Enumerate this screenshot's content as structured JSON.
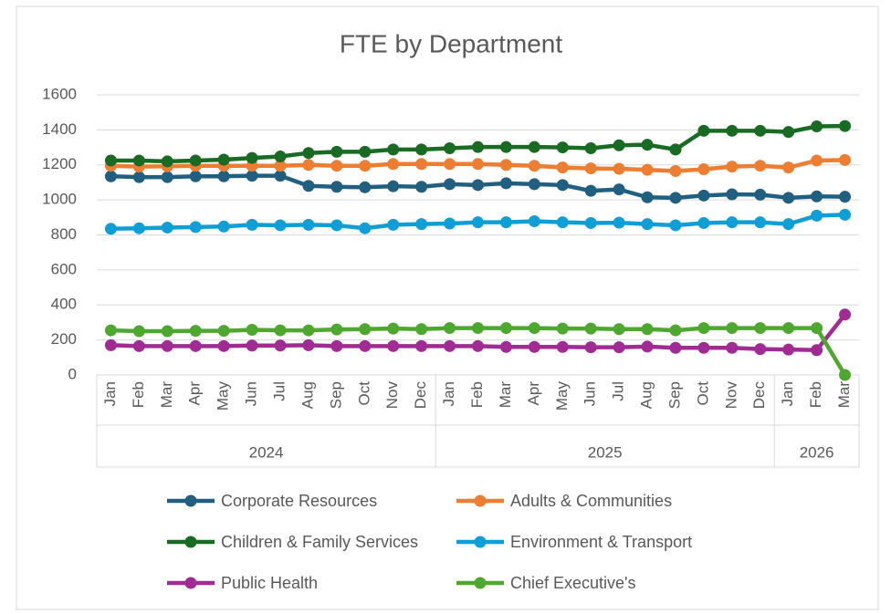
{
  "chart_data": {
    "type": "line",
    "title": "FTE by Department",
    "categories": [
      "Jan",
      "Feb",
      "Mar",
      "Apr",
      "May",
      "Jun",
      "Jul",
      "Aug",
      "Sep",
      "Oct",
      "Nov",
      "Dec",
      "Jan",
      "Feb",
      "Mar",
      "Apr",
      "May",
      "Jun",
      "Jul",
      "Aug",
      "Sep",
      "Oct",
      "Nov",
      "Dec",
      "Jan",
      "Feb",
      "Mar"
    ],
    "groups": [
      {
        "label": "2024",
        "count": 12
      },
      {
        "label": "2025",
        "count": 12
      },
      {
        "label": "2026",
        "count": 3
      }
    ],
    "ylim": [
      0,
      1600
    ],
    "yticks": [
      0,
      200,
      400,
      600,
      800,
      1000,
      1200,
      1400,
      1600
    ],
    "grid": true,
    "series": [
      {
        "name": "Corporate Resources",
        "color": "#215f80",
        "values": [
          1135,
          1130,
          1130,
          1135,
          1135,
          1138,
          1138,
          1080,
          1075,
          1072,
          1078,
          1075,
          1090,
          1085,
          1095,
          1090,
          1085,
          1052,
          1060,
          1015,
          1012,
          1025,
          1032,
          1030,
          1012,
          1020,
          1018
        ]
      },
      {
        "name": "Adults & Communities",
        "color": "#ed7d31",
        "values": [
          1195,
          1190,
          1192,
          1195,
          1195,
          1195,
          1195,
          1200,
          1195,
          1195,
          1205,
          1205,
          1205,
          1205,
          1200,
          1195,
          1185,
          1180,
          1178,
          1172,
          1165,
          1175,
          1190,
          1195,
          1185,
          1225,
          1228
        ]
      },
      {
        "name": "Children & Family Services",
        "color": "#196b24",
        "values": [
          1225,
          1225,
          1220,
          1225,
          1230,
          1240,
          1248,
          1268,
          1275,
          1275,
          1288,
          1288,
          1295,
          1302,
          1302,
          1302,
          1300,
          1295,
          1312,
          1315,
          1288,
          1395,
          1395,
          1395,
          1388,
          1420,
          1422
        ]
      },
      {
        "name": "Environment & Transport",
        "color": "#0f9ed5",
        "values": [
          835,
          838,
          842,
          845,
          848,
          858,
          855,
          858,
          855,
          838,
          858,
          862,
          865,
          872,
          872,
          878,
          872,
          868,
          870,
          862,
          855,
          868,
          872,
          872,
          862,
          910,
          915
        ]
      },
      {
        "name": "Public Health",
        "color": "#a02b93",
        "values": [
          170,
          165,
          165,
          165,
          165,
          168,
          168,
          170,
          165,
          165,
          165,
          165,
          165,
          165,
          160,
          160,
          160,
          158,
          158,
          162,
          155,
          155,
          155,
          148,
          145,
          142,
          345
        ]
      },
      {
        "name": "Chief Executive's",
        "color": "#4ea72e",
        "values": [
          255,
          250,
          250,
          252,
          252,
          258,
          255,
          255,
          260,
          262,
          265,
          262,
          268,
          268,
          268,
          268,
          265,
          265,
          262,
          262,
          255,
          268,
          268,
          268,
          268,
          268,
          0
        ]
      }
    ]
  }
}
